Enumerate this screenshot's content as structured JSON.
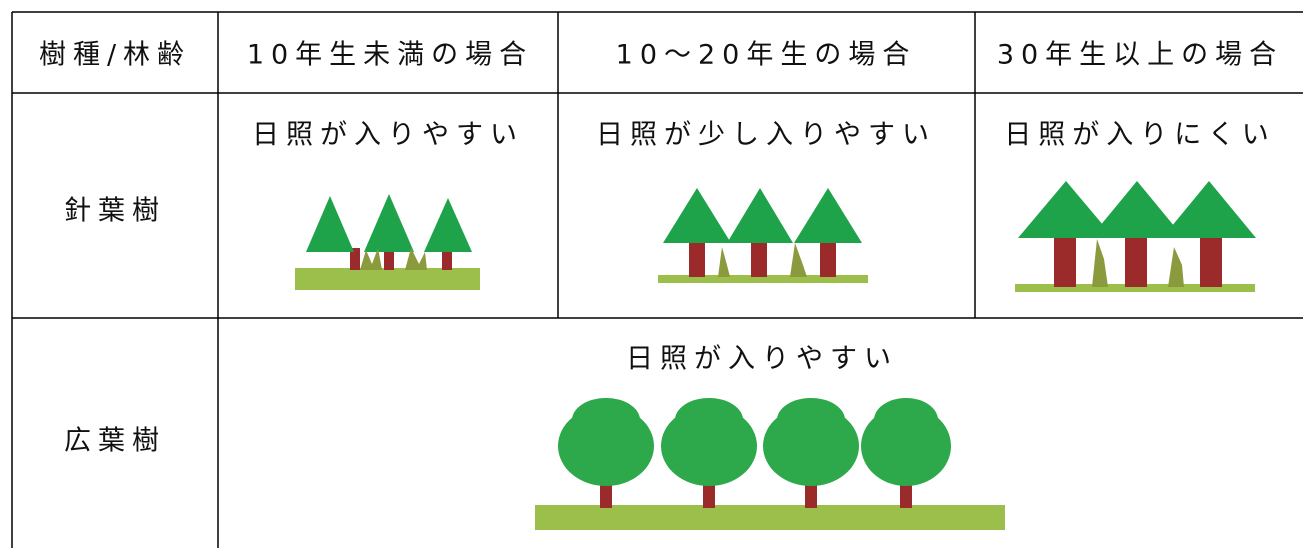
{
  "table": {
    "header": [
      "樹種/林齢",
      "10年生未満の場合",
      "10～20年生の場合",
      "30年生以上の場合"
    ],
    "rows": [
      [
        "針葉樹",
        "日照が入りやすい",
        "日照が少し入りやすい",
        "日照が入りにくい"
      ],
      [
        "広葉樹",
        "日照が入りやすい"
      ]
    ]
  }
}
